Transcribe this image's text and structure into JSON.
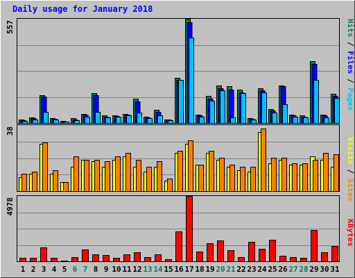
{
  "title": "Daily usage for January 2018",
  "colors": {
    "hits": "#00805c",
    "files": "#0000ff",
    "pages": "#00c0ff",
    "visits": "#ffff00",
    "sites": "#ff8000",
    "kbytes": "#ff0000",
    "weekend_label": "#00805c",
    "weekday_label": "#000000"
  },
  "chart_data": [
    {
      "type": "bar",
      "panel": "requests",
      "ymax_label": "557",
      "ylim": [
        0,
        557
      ],
      "categories": [
        "1",
        "2",
        "3",
        "4",
        "5",
        "6",
        "7",
        "8",
        "9",
        "10",
        "11",
        "12",
        "13",
        "14",
        "15",
        "16",
        "17",
        "18",
        "19",
        "20",
        "21",
        "22",
        "23",
        "24",
        "25",
        "26",
        "27",
        "28",
        "29",
        "30",
        "31"
      ],
      "weekend_days": [
        "6",
        "7",
        "13",
        "14",
        "20",
        "21",
        "27",
        "28"
      ],
      "legend": [
        "Pages",
        "Files",
        "Hits"
      ],
      "series": [
        {
          "name": "Hits",
          "color_key": "hits",
          "values": [
            20,
            30,
            150,
            25,
            10,
            25,
            50,
            160,
            40,
            40,
            50,
            130,
            35,
            70,
            20,
            240,
            557,
            45,
            145,
            200,
            195,
            180,
            25,
            185,
            75,
            200,
            45,
            40,
            330,
            45,
            155
          ]
        },
        {
          "name": "Files",
          "color_key": "files",
          "values": [
            15,
            25,
            140,
            22,
            8,
            20,
            45,
            150,
            35,
            38,
            45,
            115,
            30,
            60,
            18,
            230,
            540,
            40,
            130,
            185,
            180,
            165,
            22,
            175,
            65,
            195,
            40,
            35,
            315,
            40,
            145
          ]
        },
        {
          "name": "Pages",
          "color_key": "pages",
          "values": [
            12,
            20,
            60,
            18,
            6,
            15,
            35,
            60,
            28,
            35,
            40,
            55,
            25,
            40,
            15,
            230,
            455,
            35,
            120,
            175,
            30,
            160,
            20,
            165,
            55,
            100,
            35,
            30,
            230,
            30,
            135
          ]
        }
      ]
    },
    {
      "type": "bar",
      "panel": "visitors",
      "ymax_label": "38",
      "ylim": [
        0,
        38
      ],
      "categories": [
        "1",
        "2",
        "3",
        "4",
        "5",
        "6",
        "7",
        "8",
        "9",
        "10",
        "11",
        "12",
        "13",
        "14",
        "15",
        "16",
        "17",
        "18",
        "19",
        "20",
        "21",
        "22",
        "23",
        "24",
        "25",
        "26",
        "27",
        "28",
        "29",
        "30",
        "31"
      ],
      "legend": [
        "Sites",
        "Visits"
      ],
      "series": [
        {
          "name": "Visits",
          "color_key": "visits",
          "values": [
            8,
            10,
            27,
            10,
            5,
            14,
            18,
            17,
            14,
            18,
            20,
            14,
            11,
            14,
            6,
            22,
            27,
            15,
            22,
            18,
            14,
            12,
            11,
            34,
            16,
            18,
            15,
            15,
            20,
            18,
            14
          ]
        },
        {
          "name": "Sites",
          "color_key": "sites",
          "values": [
            10,
            11,
            28,
            12,
            5,
            20,
            18,
            18,
            17,
            20,
            22,
            18,
            14,
            17,
            7,
            23,
            29,
            15,
            23,
            19,
            15,
            14,
            14,
            36,
            19,
            19,
            16,
            16,
            18,
            22,
            21
          ]
        }
      ]
    },
    {
      "type": "bar",
      "panel": "kbytes",
      "ymax_label": "4978",
      "ylim": [
        0,
        4978
      ],
      "categories": [
        "1",
        "2",
        "3",
        "4",
        "5",
        "6",
        "7",
        "8",
        "9",
        "10",
        "11",
        "12",
        "13",
        "14",
        "15",
        "16",
        "17",
        "18",
        "19",
        "20",
        "21",
        "22",
        "23",
        "24",
        "25",
        "26",
        "27",
        "28",
        "29",
        "30",
        "31"
      ],
      "legend": [
        "KBytes"
      ],
      "series": [
        {
          "name": "KBytes",
          "color_key": "kbytes",
          "values": [
            280,
            290,
            1050,
            280,
            40,
            330,
            900,
            530,
            500,
            240,
            520,
            700,
            340,
            520,
            180,
            2280,
            4978,
            750,
            1400,
            1600,
            850,
            300,
            1480,
            950,
            1640,
            400,
            300,
            280,
            2400,
            700,
            1180
          ]
        }
      ]
    }
  ]
}
